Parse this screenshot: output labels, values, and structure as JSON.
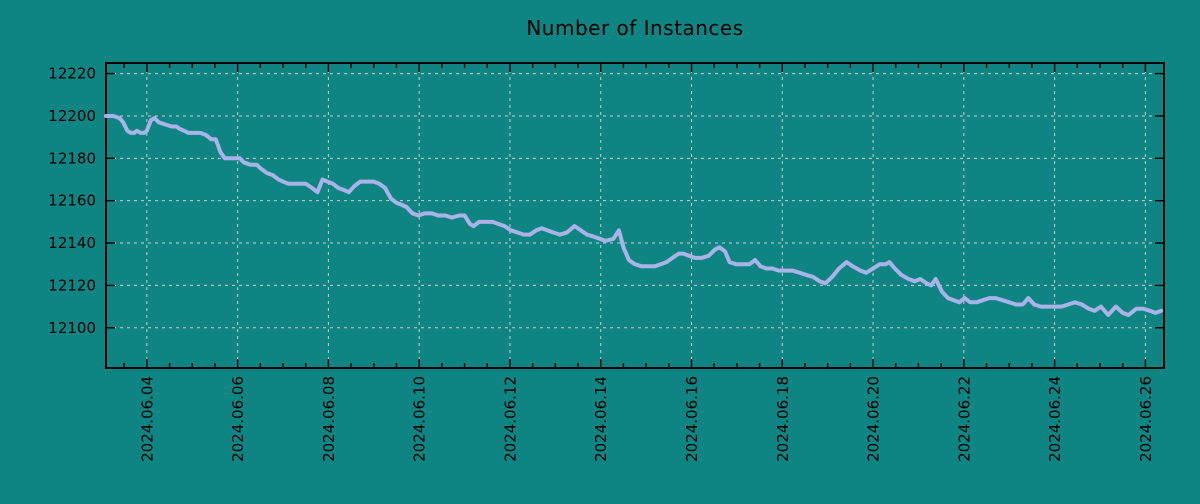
{
  "colors": {
    "background": "#0f8583",
    "line": "#a9b3e8",
    "grid": "#cccccc",
    "axis": "#000000",
    "text": "#000000"
  },
  "chart_data": {
    "type": "line",
    "title": "Number of Instances",
    "xlabel": "",
    "ylabel": "",
    "legend": "none",
    "grid": "dashed, at major ticks",
    "x_unit": "date, day of June 2024 (fractional)",
    "xlim": [
      3.1,
      26.41
    ],
    "ylim": [
      12081,
      12225
    ],
    "y_ticks": [
      12100,
      12120,
      12140,
      12160,
      12180,
      12200,
      12220
    ],
    "x_major_ticks": [
      4,
      6,
      8,
      10,
      12,
      14,
      16,
      18,
      20,
      22,
      24,
      26
    ],
    "x_tick_labels": [
      "2024.06.04",
      "2024.06.06",
      "2024.06.08",
      "2024.06.10",
      "2024.06.12",
      "2024.06.14",
      "2024.06.16",
      "2024.06.18",
      "2024.06.20",
      "2024.06.22",
      "2024.06.24",
      "2024.06.26"
    ],
    "x_minor_step": 0.5,
    "points": [
      [
        3.1,
        12200
      ],
      [
        3.26,
        12200
      ],
      [
        3.4,
        12199
      ],
      [
        3.48,
        12197
      ],
      [
        3.57,
        12193
      ],
      [
        3.65,
        12192
      ],
      [
        3.72,
        12192
      ],
      [
        3.78,
        12193
      ],
      [
        3.86,
        12192
      ],
      [
        3.94,
        12192
      ],
      [
        4.0,
        12193
      ],
      [
        4.09,
        12198
      ],
      [
        4.17,
        12199
      ],
      [
        4.26,
        12197
      ],
      [
        4.4,
        12196
      ],
      [
        4.55,
        12195
      ],
      [
        4.65,
        12195
      ],
      [
        4.72,
        12194
      ],
      [
        4.82,
        12193
      ],
      [
        4.92,
        12192
      ],
      [
        5.05,
        12192
      ],
      [
        5.18,
        12192
      ],
      [
        5.3,
        12191
      ],
      [
        5.42,
        12189
      ],
      [
        5.52,
        12189
      ],
      [
        5.62,
        12183
      ],
      [
        5.72,
        12180
      ],
      [
        5.88,
        12180
      ],
      [
        6.05,
        12180
      ],
      [
        6.14,
        12178
      ],
      [
        6.28,
        12177
      ],
      [
        6.42,
        12177
      ],
      [
        6.52,
        12175
      ],
      [
        6.65,
        12173
      ],
      [
        6.78,
        12172
      ],
      [
        6.9,
        12170
      ],
      [
        7.0,
        12169
      ],
      [
        7.12,
        12168
      ],
      [
        7.3,
        12168
      ],
      [
        7.5,
        12168
      ],
      [
        7.64,
        12166
      ],
      [
        7.76,
        12164
      ],
      [
        7.87,
        12170
      ],
      [
        7.98,
        12169
      ],
      [
        8.1,
        12168
      ],
      [
        8.22,
        12166
      ],
      [
        8.35,
        12165
      ],
      [
        8.45,
        12164
      ],
      [
        8.58,
        12167
      ],
      [
        8.7,
        12169
      ],
      [
        8.85,
        12169
      ],
      [
        9.0,
        12169
      ],
      [
        9.12,
        12168
      ],
      [
        9.25,
        12166
      ],
      [
        9.38,
        12161
      ],
      [
        9.5,
        12159
      ],
      [
        9.62,
        12158
      ],
      [
        9.72,
        12157
      ],
      [
        9.85,
        12154
      ],
      [
        9.98,
        12153
      ],
      [
        10.12,
        12154
      ],
      [
        10.28,
        12154
      ],
      [
        10.42,
        12153
      ],
      [
        10.58,
        12153
      ],
      [
        10.72,
        12152
      ],
      [
        10.88,
        12153
      ],
      [
        11.0,
        12153
      ],
      [
        11.12,
        12149
      ],
      [
        11.2,
        12148
      ],
      [
        11.32,
        12150
      ],
      [
        11.48,
        12150
      ],
      [
        11.62,
        12150
      ],
      [
        11.75,
        12149
      ],
      [
        11.88,
        12148
      ],
      [
        12.02,
        12146
      ],
      [
        12.16,
        12145
      ],
      [
        12.3,
        12144
      ],
      [
        12.44,
        12144
      ],
      [
        12.58,
        12146
      ],
      [
        12.7,
        12147
      ],
      [
        12.82,
        12146
      ],
      [
        12.95,
        12145
      ],
      [
        13.1,
        12144
      ],
      [
        13.26,
        12145
      ],
      [
        13.42,
        12148
      ],
      [
        13.56,
        12146
      ],
      [
        13.7,
        12144
      ],
      [
        13.85,
        12143
      ],
      [
        13.98,
        12142
      ],
      [
        14.1,
        12141
      ],
      [
        14.28,
        12142
      ],
      [
        14.4,
        12146
      ],
      [
        14.5,
        12138
      ],
      [
        14.62,
        12132
      ],
      [
        14.75,
        12130
      ],
      [
        14.9,
        12129
      ],
      [
        15.05,
        12129
      ],
      [
        15.2,
        12129
      ],
      [
        15.32,
        12130
      ],
      [
        15.45,
        12131
      ],
      [
        15.58,
        12133
      ],
      [
        15.72,
        12135
      ],
      [
        15.82,
        12135
      ],
      [
        15.94,
        12134
      ],
      [
        16.08,
        12133
      ],
      [
        16.22,
        12133
      ],
      [
        16.38,
        12134
      ],
      [
        16.52,
        12137
      ],
      [
        16.62,
        12138
      ],
      [
        16.74,
        12136
      ],
      [
        16.84,
        12131
      ],
      [
        16.98,
        12130
      ],
      [
        17.12,
        12130
      ],
      [
        17.28,
        12130
      ],
      [
        17.4,
        12132
      ],
      [
        17.52,
        12129
      ],
      [
        17.65,
        12128
      ],
      [
        17.78,
        12128
      ],
      [
        17.92,
        12127
      ],
      [
        18.08,
        12127
      ],
      [
        18.22,
        12127
      ],
      [
        18.38,
        12126
      ],
      [
        18.52,
        12125
      ],
      [
        18.68,
        12124
      ],
      [
        18.82,
        12122
      ],
      [
        18.95,
        12121
      ],
      [
        19.1,
        12124
      ],
      [
        19.25,
        12128
      ],
      [
        19.42,
        12131
      ],
      [
        19.55,
        12129
      ],
      [
        19.72,
        12127
      ],
      [
        19.85,
        12126
      ],
      [
        20.0,
        12128
      ],
      [
        20.15,
        12130
      ],
      [
        20.28,
        12130
      ],
      [
        20.36,
        12131
      ],
      [
        20.48,
        12128
      ],
      [
        20.62,
        12125
      ],
      [
        20.78,
        12123
      ],
      [
        20.92,
        12122
      ],
      [
        21.04,
        12123
      ],
      [
        21.18,
        12121
      ],
      [
        21.28,
        12120
      ],
      [
        21.38,
        12123
      ],
      [
        21.52,
        12117
      ],
      [
        21.65,
        12114
      ],
      [
        21.78,
        12113
      ],
      [
        21.9,
        12112
      ],
      [
        22.02,
        12114
      ],
      [
        22.14,
        12112
      ],
      [
        22.28,
        12112
      ],
      [
        22.42,
        12113
      ],
      [
        22.56,
        12114
      ],
      [
        22.7,
        12114
      ],
      [
        22.85,
        12113
      ],
      [
        23.0,
        12112
      ],
      [
        23.15,
        12111
      ],
      [
        23.3,
        12111
      ],
      [
        23.42,
        12114
      ],
      [
        23.55,
        12111
      ],
      [
        23.7,
        12110
      ],
      [
        23.85,
        12110
      ],
      [
        24.0,
        12110
      ],
      [
        24.15,
        12110
      ],
      [
        24.3,
        12111
      ],
      [
        24.45,
        12112
      ],
      [
        24.6,
        12111
      ],
      [
        24.75,
        12109
      ],
      [
        24.88,
        12108
      ],
      [
        25.02,
        12110
      ],
      [
        25.18,
        12106
      ],
      [
        25.35,
        12110
      ],
      [
        25.5,
        12107
      ],
      [
        25.63,
        12106
      ],
      [
        25.8,
        12109
      ],
      [
        25.95,
        12109
      ],
      [
        26.1,
        12108
      ],
      [
        26.22,
        12107
      ],
      [
        26.35,
        12108
      ]
    ]
  }
}
